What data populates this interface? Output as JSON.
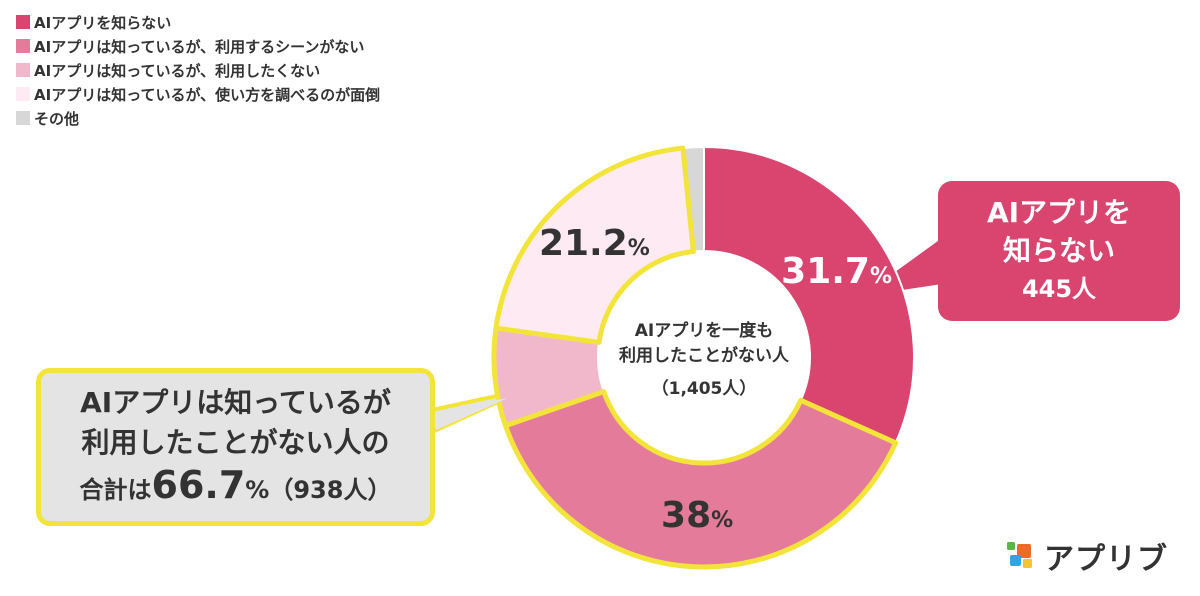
{
  "legend": {
    "items": [
      {
        "label": "AIアプリを知らない",
        "color": "#d9456f"
      },
      {
        "label": "AIアプリは知っているが、利用するシーンがない",
        "color": "#e57b9b"
      },
      {
        "label": "AIアプリは知っているが、利用したくない",
        "color": "#f1b8cc"
      },
      {
        "label": "AIアプリは知っているが、使い方を調べるのが面倒",
        "color": "#fdeaf2"
      },
      {
        "label": "その他",
        "color": "#d7d7d7"
      }
    ]
  },
  "chart_data": {
    "type": "pie",
    "categories": [
      "AIアプリを知らない",
      "AIアプリは知っているが、利用するシーンがない",
      "AIアプリは知っているが、利用したくない",
      "AIアプリは知っているが、使い方を調べるのが面倒",
      "その他"
    ],
    "values": [
      31.7,
      38,
      7.5,
      21.2,
      1.6
    ],
    "colors": [
      "#d9456f",
      "#e57b9b",
      "#f1b8cc",
      "#fdeaf2",
      "#d7d7d7"
    ],
    "data_labels": [
      {
        "value": "31.7",
        "unit": "%",
        "color": "#ffffff"
      },
      {
        "value": "38",
        "unit": "%",
        "color": "#333333"
      },
      null,
      {
        "value": "21.2",
        "unit": "%",
        "color": "#333333"
      },
      null
    ],
    "highlight_color": "#f3e43a",
    "center_label": {
      "line1": "AIアプリを一度も",
      "line2": "利用したことがない人",
      "line3": "（1,405人）"
    }
  },
  "callout_right": {
    "line1": "AIアプリを",
    "line2": "知らない",
    "count": "445人"
  },
  "callout_left": {
    "line1": "AIアプリは知っているが",
    "line2": "利用したことがない人の",
    "total_prefix": "合計は",
    "total_pct": "66.7",
    "total_suffix": "%（938人）"
  },
  "logo": {
    "text": "アプリブ"
  }
}
